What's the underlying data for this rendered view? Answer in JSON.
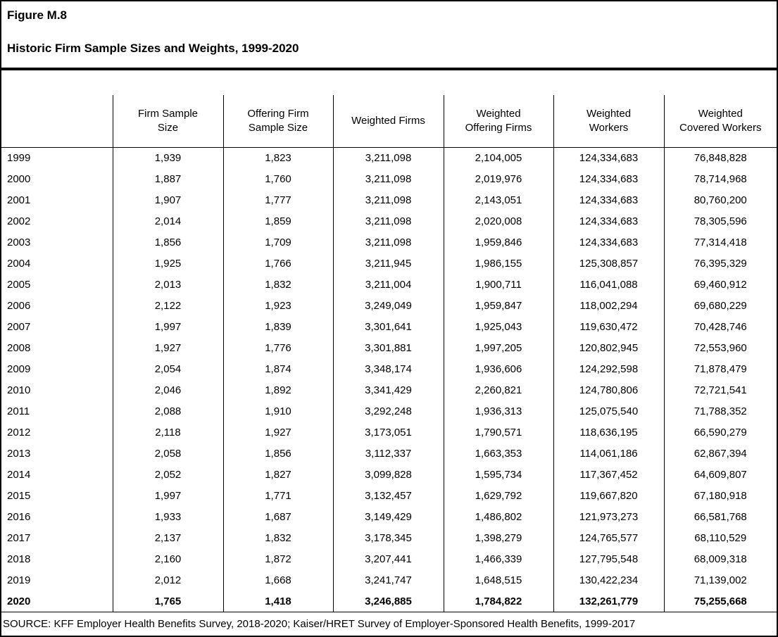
{
  "figure": {
    "title": "Figure M.8",
    "subtitle": "Historic Firm Sample Sizes and Weights, 1999-2020"
  },
  "table": {
    "columns": [
      "",
      "Firm Sample\nSize",
      "Offering Firm\nSample Size",
      "Weighted Firms",
      "Weighted\nOffering Firms",
      "Weighted\nWorkers",
      "Weighted\nCovered Workers"
    ],
    "rows": [
      [
        "1999",
        "1,939",
        "1,823",
        "3,211,098",
        "2,104,005",
        "124,334,683",
        "76,848,828"
      ],
      [
        "2000",
        "1,887",
        "1,760",
        "3,211,098",
        "2,019,976",
        "124,334,683",
        "78,714,968"
      ],
      [
        "2001",
        "1,907",
        "1,777",
        "3,211,098",
        "2,143,051",
        "124,334,683",
        "80,760,200"
      ],
      [
        "2002",
        "2,014",
        "1,859",
        "3,211,098",
        "2,020,008",
        "124,334,683",
        "78,305,596"
      ],
      [
        "2003",
        "1,856",
        "1,709",
        "3,211,098",
        "1,959,846",
        "124,334,683",
        "77,314,418"
      ],
      [
        "2004",
        "1,925",
        "1,766",
        "3,211,945",
        "1,986,155",
        "125,308,857",
        "76,395,329"
      ],
      [
        "2005",
        "2,013",
        "1,832",
        "3,211,004",
        "1,900,711",
        "116,041,088",
        "69,460,912"
      ],
      [
        "2006",
        "2,122",
        "1,923",
        "3,249,049",
        "1,959,847",
        "118,002,294",
        "69,680,229"
      ],
      [
        "2007",
        "1,997",
        "1,839",
        "3,301,641",
        "1,925,043",
        "119,630,472",
        "70,428,746"
      ],
      [
        "2008",
        "1,927",
        "1,776",
        "3,301,881",
        "1,997,205",
        "120,802,945",
        "72,553,960"
      ],
      [
        "2009",
        "2,054",
        "1,874",
        "3,348,174",
        "1,936,606",
        "124,292,598",
        "71,878,479"
      ],
      [
        "2010",
        "2,046",
        "1,892",
        "3,341,429",
        "2,260,821",
        "124,780,806",
        "72,721,541"
      ],
      [
        "2011",
        "2,088",
        "1,910",
        "3,292,248",
        "1,936,313",
        "125,075,540",
        "71,788,352"
      ],
      [
        "2012",
        "2,118",
        "1,927",
        "3,173,051",
        "1,790,571",
        "118,636,195",
        "66,590,279"
      ],
      [
        "2013",
        "2,058",
        "1,856",
        "3,112,337",
        "1,663,353",
        "114,061,186",
        "62,867,394"
      ],
      [
        "2014",
        "2,052",
        "1,827",
        "3,099,828",
        "1,595,734",
        "117,367,452",
        "64,609,807"
      ],
      [
        "2015",
        "1,997",
        "1,771",
        "3,132,457",
        "1,629,792",
        "119,667,820",
        "67,180,918"
      ],
      [
        "2016",
        "1,933",
        "1,687",
        "3,149,429",
        "1,486,802",
        "121,973,273",
        "66,581,768"
      ],
      [
        "2017",
        "2,137",
        "1,832",
        "3,178,345",
        "1,398,279",
        "124,765,577",
        "68,110,529"
      ],
      [
        "2018",
        "2,160",
        "1,872",
        "3,207,441",
        "1,466,339",
        "127,795,548",
        "68,009,318"
      ],
      [
        "2019",
        "2,012",
        "1,668",
        "3,241,747",
        "1,648,515",
        "130,422,234",
        "71,139,002"
      ],
      [
        "2020",
        "1,765",
        "1,418",
        "3,246,885",
        "1,784,822",
        "132,261,779",
        "75,255,668"
      ]
    ],
    "bold_rows": [
      "2020"
    ]
  },
  "source": "SOURCE: KFF Employer Health Benefits Survey, 2018-2020; Kaiser/HRET Survey of Employer-Sponsored Health Benefits, 1999-2017"
}
